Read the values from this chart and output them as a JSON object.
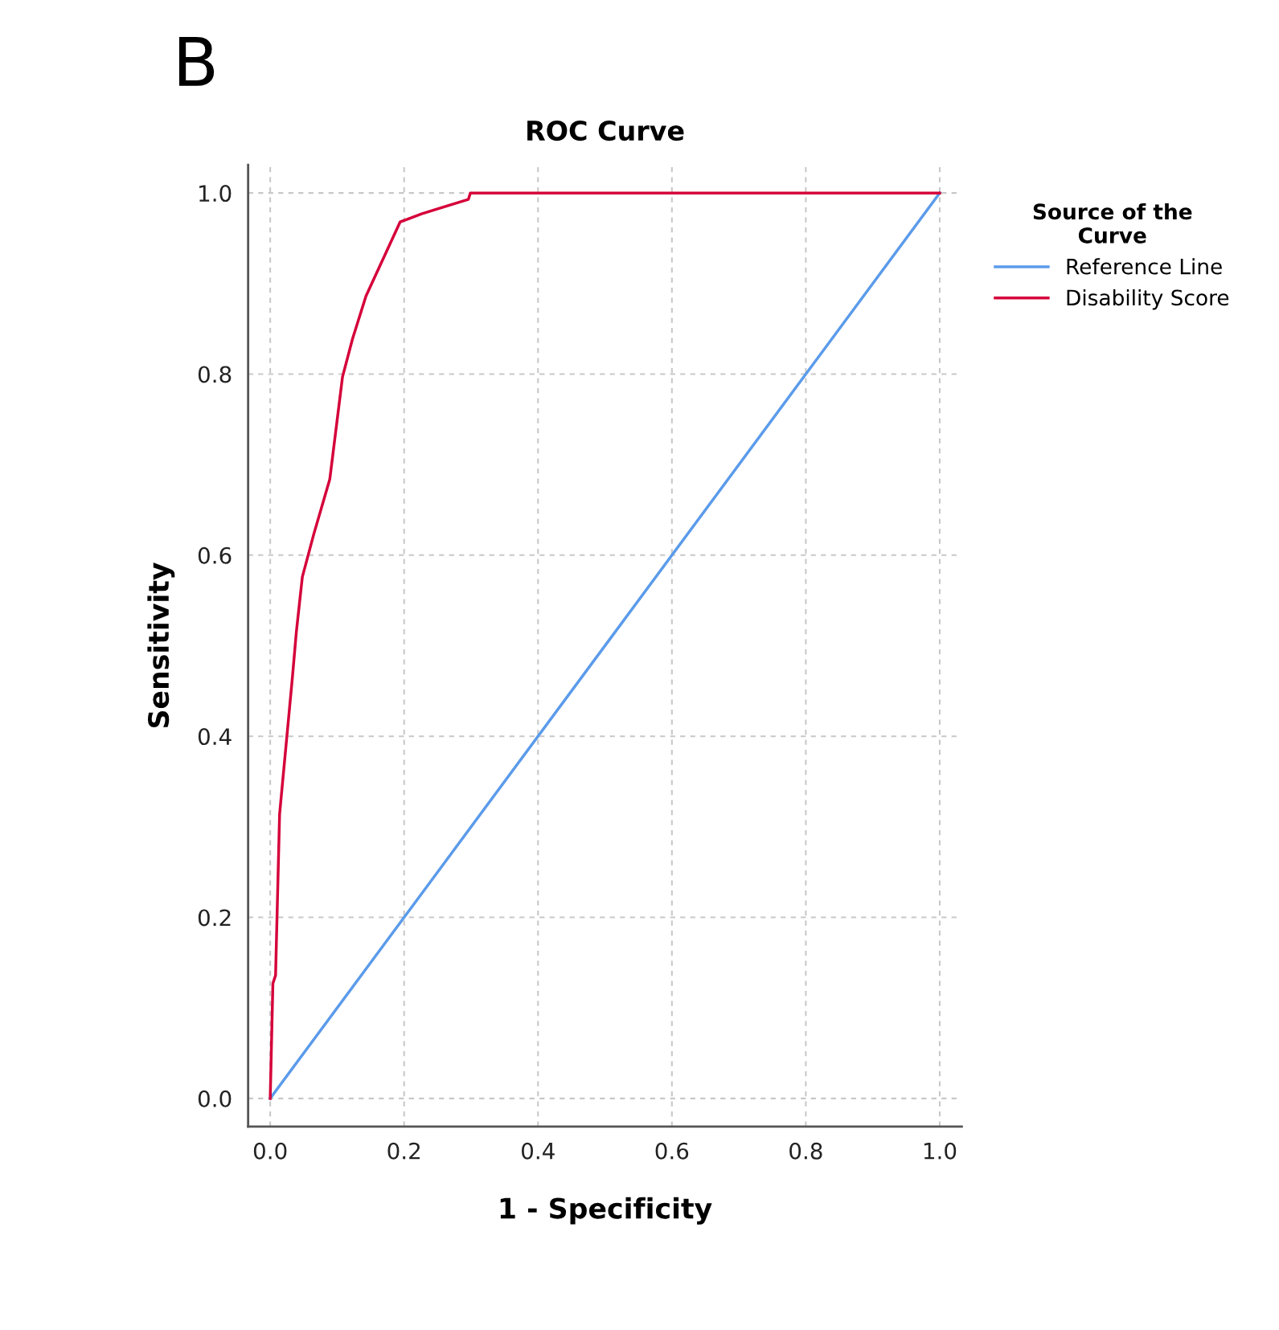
{
  "chart_data": {
    "type": "line",
    "title": "ROC Curve",
    "xlabel": "1 - Specificity",
    "ylabel": "Sensitivity",
    "legend_title": "Source of the\nCurve",
    "annotations": [
      "B"
    ],
    "series": [
      {
        "name": "Reference Line",
        "color": "#5b9bea",
        "x": [
          0,
          1
        ],
        "values": [
          0,
          1
        ]
      },
      {
        "name": "Disability Score",
        "color": "#d5003a",
        "x": [
          0,
          0.004,
          0.008,
          0.014,
          0.033,
          0.039,
          0.048,
          0.065,
          0.089,
          0.108,
          0.123,
          0.143,
          0.194,
          0.226,
          0.296,
          0.299,
          1
        ],
        "values": [
          0,
          0.127,
          0.136,
          0.314,
          0.464,
          0.515,
          0.576,
          0.623,
          0.684,
          0.797,
          0.839,
          0.886,
          0.968,
          0.977,
          0.993,
          1,
          1
        ]
      }
    ],
    "xlim": [
      -0.033,
      1.033
    ],
    "ylim": [
      -0.031,
      1.031
    ],
    "xticks": [
      {
        "value": 0,
        "label": "0.0"
      },
      {
        "value": 0.2,
        "label": "0.2"
      },
      {
        "value": 0.4,
        "label": "0.4"
      },
      {
        "value": 0.6,
        "label": "0.6"
      },
      {
        "value": 0.8,
        "label": "0.8"
      },
      {
        "value": 1,
        "label": "1.0"
      }
    ],
    "yticks": [
      {
        "value": 0,
        "label": "0.0"
      },
      {
        "value": 0.2,
        "label": "0.2"
      },
      {
        "value": 0.4,
        "label": "0.4"
      },
      {
        "value": 0.6,
        "label": "0.6"
      },
      {
        "value": 0.8,
        "label": "0.8"
      },
      {
        "value": 1,
        "label": "1.0"
      }
    ],
    "grid": true,
    "legend": "top right"
  }
}
